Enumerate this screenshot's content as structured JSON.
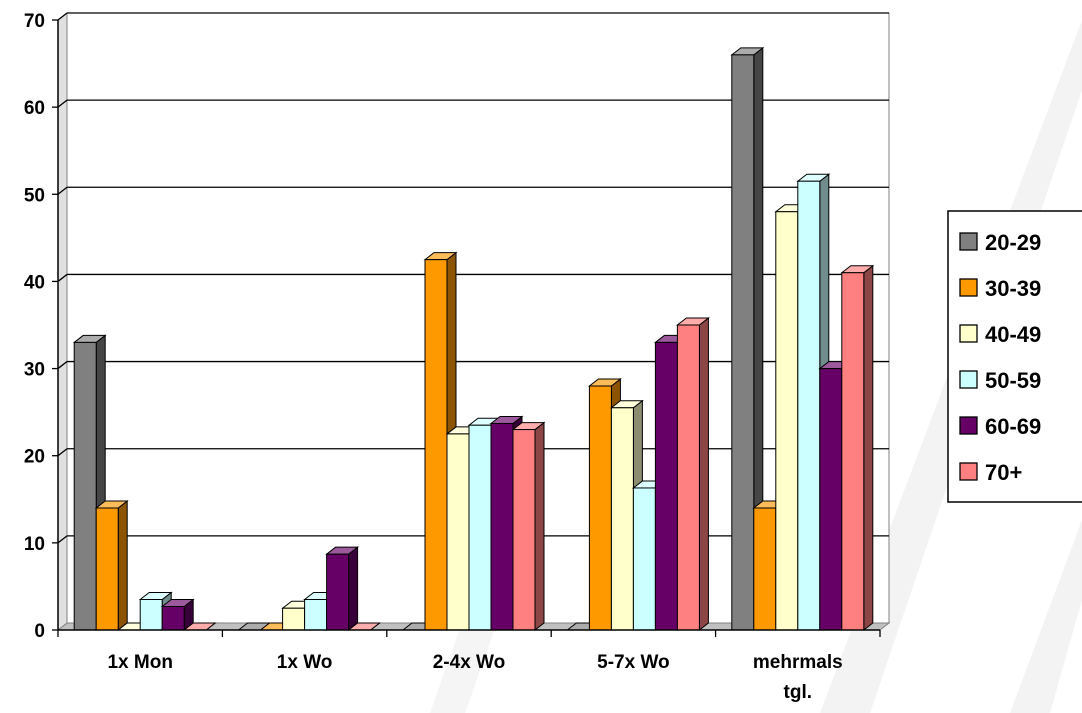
{
  "chart_data": {
    "type": "bar",
    "categories": [
      "1x Mon",
      "1x Wo",
      "2-4x Wo",
      "5-7x Wo",
      "mehrmals tgl."
    ],
    "series": [
      {
        "name": "20-29",
        "color": "#808080",
        "values": [
          33,
          0,
          0,
          0,
          66
        ]
      },
      {
        "name": "30-39",
        "color": "#FF9900",
        "values": [
          14,
          0,
          42.5,
          28,
          14
        ]
      },
      {
        "name": "40-49",
        "color": "#FFFFCC",
        "values": [
          0,
          2.5,
          22.5,
          25.5,
          48
        ]
      },
      {
        "name": "50-59",
        "color": "#CCFFFF",
        "values": [
          3.5,
          3.5,
          23.5,
          16.3,
          51.5
        ]
      },
      {
        "name": "60-69",
        "color": "#660066",
        "values": [
          2.7,
          8.7,
          23.7,
          33,
          30
        ]
      },
      {
        "name": "70+",
        "color": "#FF8080",
        "values": [
          0,
          0,
          23,
          35,
          41
        ]
      }
    ],
    "ylim": [
      0,
      70
    ],
    "yticks": [
      "0",
      "10",
      "20",
      "30",
      "40",
      "50",
      "60",
      "70"
    ],
    "grid": true,
    "legend": "right",
    "style": "3d-clustered-column"
  }
}
